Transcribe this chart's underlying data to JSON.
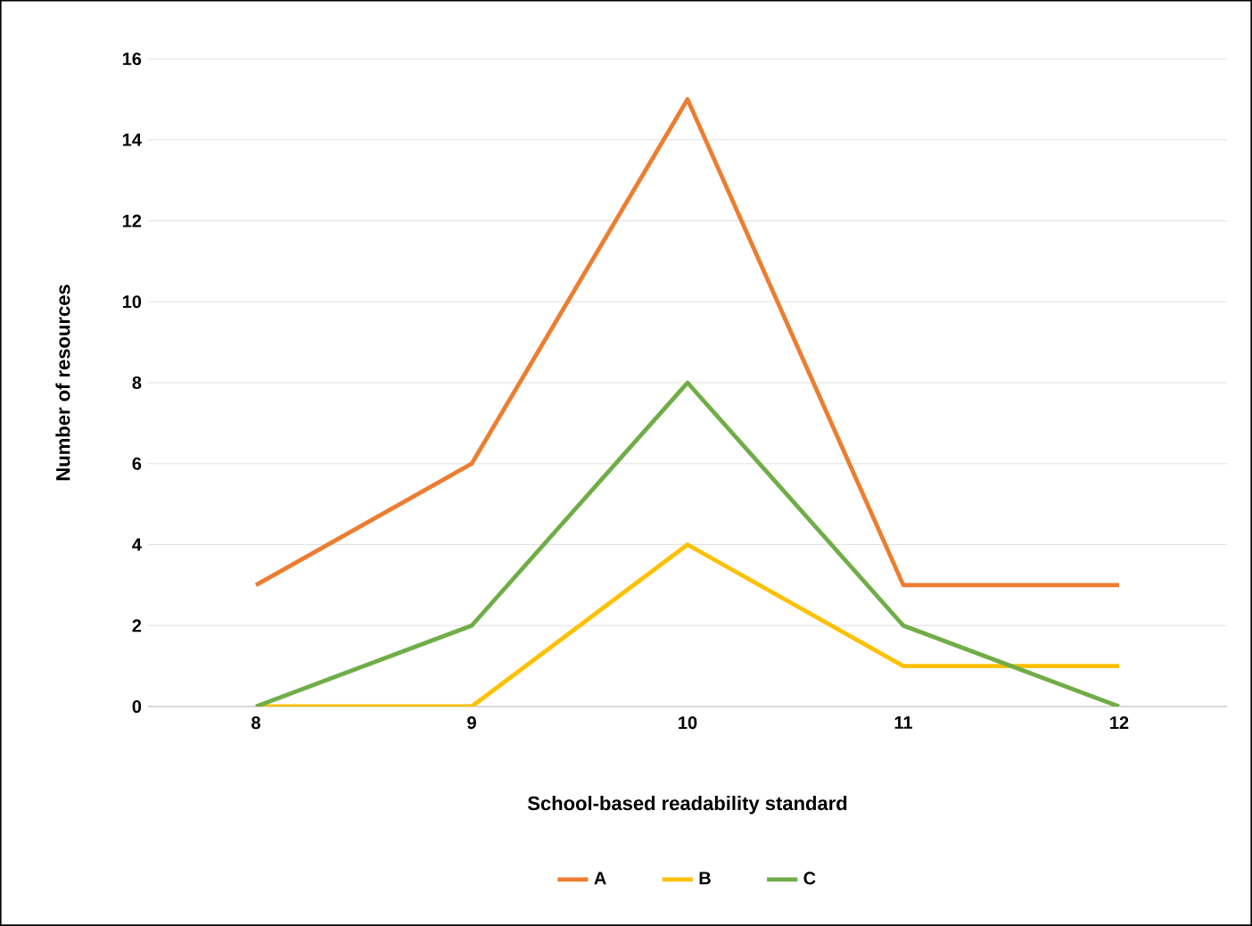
{
  "chart_data": {
    "type": "line",
    "xlabel": "School-based readability standard",
    "ylabel": "Number of resources",
    "categories": [
      "8",
      "9",
      "10",
      "11",
      "12"
    ],
    "series": [
      {
        "name": "A",
        "color": "#ed7d31",
        "values": [
          3,
          6,
          15,
          3,
          3
        ]
      },
      {
        "name": "B",
        "color": "#ffc000",
        "values": [
          0,
          0,
          4,
          1,
          1
        ]
      },
      {
        "name": "C",
        "color": "#70ad47",
        "values": [
          0,
          2,
          8,
          2,
          0
        ]
      }
    ],
    "ylim": [
      0,
      16
    ],
    "yticks": [
      0,
      2,
      4,
      6,
      8,
      10,
      12,
      14,
      16
    ],
    "grid": "y",
    "legend": "bottom",
    "marker": "none",
    "line_style": "solid"
  }
}
